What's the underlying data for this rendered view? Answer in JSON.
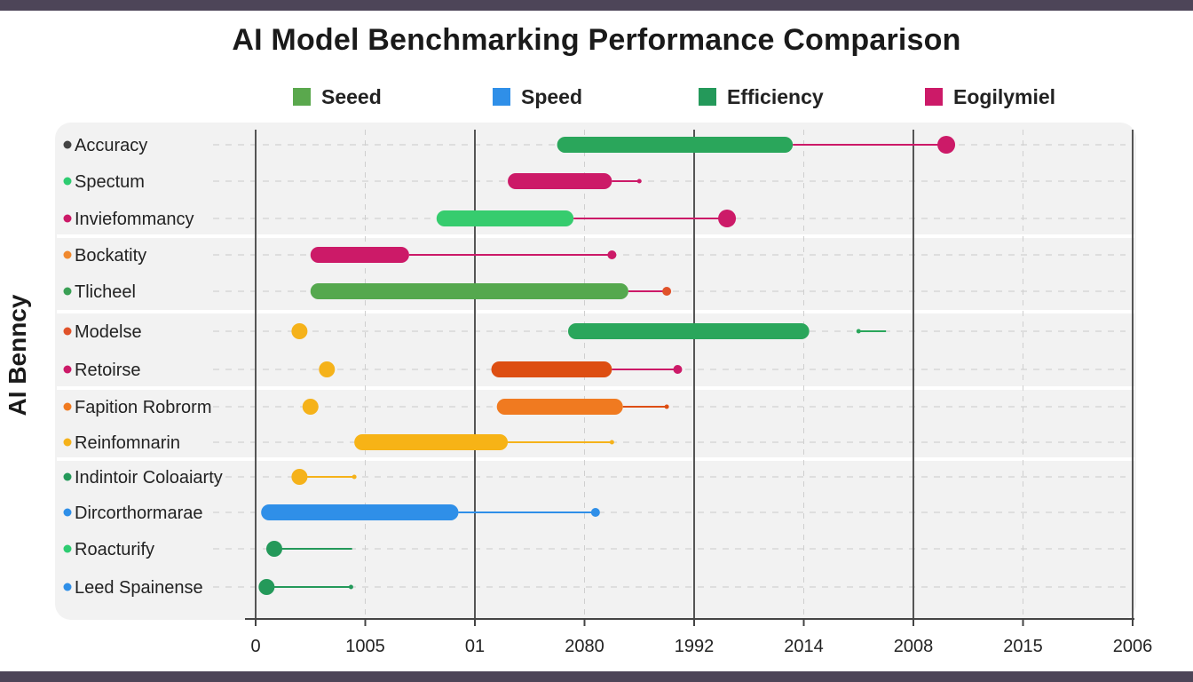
{
  "chart_data": {
    "type": "bar",
    "title": "AI Model Benchmarking Performance Comparison",
    "ylabel": "AI Benncy",
    "xlabel": "",
    "x_tick_labels": [
      "0",
      "1005",
      "01",
      "2080",
      "1992",
      "2014",
      "2008",
      "2015",
      "2006"
    ],
    "legend": [
      {
        "name": "Seeed",
        "color": "#5aa84d"
      },
      {
        "name": "Speed",
        "color": "#2f8fe8"
      },
      {
        "name": "Efficiency",
        "color": "#24995a"
      },
      {
        "name": "Eogilymiel",
        "color": "#cc1a68"
      }
    ],
    "legend_position": "top",
    "grid": true,
    "rows": [
      {
        "label": "Accuracy",
        "dot_color": "#444444",
        "bar": {
          "start": 2.75,
          "end": 4.9,
          "color": "#2aa65b"
        },
        "line_end": 6.3,
        "end_marker": "large",
        "line_color": "#cc1a68",
        "end_color": "#cc1a68"
      },
      {
        "label": "Spectum",
        "dot_color": "#2ecc71",
        "bar": {
          "start": 2.3,
          "end": 3.25,
          "color": "#cc1a68"
        },
        "line_end": 3.5,
        "end_marker": "tiny",
        "line_color": "#cc1a68",
        "end_color": "#cc1a68"
      },
      {
        "label": "Inviefommancy",
        "dot_color": "#cc1a68",
        "bar": {
          "start": 1.65,
          "end": 2.9,
          "color": "#36cc6e"
        },
        "line_end": 4.3,
        "end_marker": "large",
        "line_color": "#cc1a68",
        "end_color": "#cc1a68"
      },
      {
        "label": "Bockatity",
        "dot_color": "#f0892e",
        "bar": {
          "start": 0.5,
          "end": 1.4,
          "color": "#cc1a68"
        },
        "line_end": 3.25,
        "end_marker": "small",
        "line_color": "#cc1a68",
        "end_color": "#cc1a68"
      },
      {
        "label": "Tlicheel",
        "dot_color": "#3aa055",
        "bar": {
          "start": 0.5,
          "end": 3.4,
          "color": "#55a84e"
        },
        "line_end": 3.75,
        "end_marker": "small",
        "line_color": "#cc1a68",
        "end_color": "#e0522a"
      },
      {
        "label": "Modelse",
        "dot_color": "#e0522a",
        "point": 0.4,
        "point_color": "#f5b21a",
        "bar": {
          "start": 2.85,
          "end": 5.05,
          "color": "#2aa65b"
        },
        "extra_segment": {
          "start": 5.5,
          "end": 5.75
        },
        "extra_color": "#2aa65b"
      },
      {
        "label": "Retoirse",
        "dot_color": "#cc1a68",
        "point": 0.65,
        "point_color": "#f5b21a",
        "bar": {
          "start": 2.15,
          "end": 3.25,
          "color": "#dd4e12"
        },
        "line_end": 3.85,
        "end_marker": "small",
        "line_color": "#cc1a68",
        "end_color": "#cc1a68"
      },
      {
        "label": "Fapition Robrorm",
        "dot_color": "#f07a20",
        "point": 0.5,
        "point_color": "#f5b21a",
        "bar": {
          "start": 2.2,
          "end": 3.35,
          "color": "#f07a20"
        },
        "line_end": 3.75,
        "end_marker": "tiny",
        "line_color": "#dd4e12",
        "end_color": "#dd4e12"
      },
      {
        "label": "Reinfomnarin",
        "dot_color": "#f5b21a",
        "bar": {
          "start": 0.9,
          "end": 2.3,
          "color": "#f7b316"
        },
        "line_end": 3.25,
        "end_marker": "tiny",
        "line_color": "#f5b21a",
        "end_color": "#f5b21a"
      },
      {
        "label": "Indintoir Coloaiarty",
        "dot_color": "#24995a",
        "point": 0.4,
        "point_color": "#f5b21a",
        "line_end": 0.9,
        "end_marker": "tiny",
        "line_color": "#f5b21a",
        "end_color": "#f5b21a"
      },
      {
        "label": "Dircorthormarae",
        "dot_color": "#2f8fe8",
        "bar": {
          "start": 0.05,
          "end": 1.85,
          "color": "#2f8fe8"
        },
        "line_end": 3.1,
        "end_marker": "small",
        "line_color": "#2f8fe8",
        "end_color": "#2f8fe8"
      },
      {
        "label": "Roacturify",
        "dot_color": "#2ecc71",
        "point": 0.17,
        "point_color": "#24995a",
        "line_end": 0.88,
        "end_marker": "none",
        "line_color": "#24995a",
        "end_color": "#24995a"
      },
      {
        "label": "Leed Spainense",
        "dot_color": "#2f8fe8",
        "point": 0.1,
        "point_color": "#24995a",
        "line_end": 0.87,
        "end_marker": "tiny",
        "line_color": "#24995a",
        "end_color": "#24995a"
      }
    ]
  }
}
